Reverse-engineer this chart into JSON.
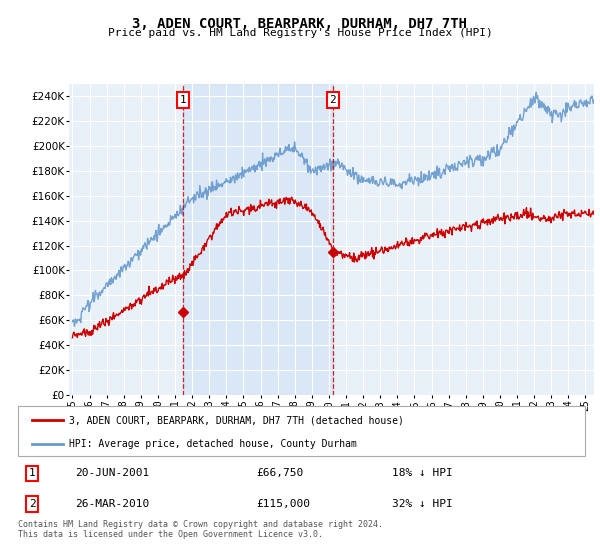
{
  "title": "3, ADEN COURT, BEARPARK, DURHAM, DH7 7TH",
  "subtitle": "Price paid vs. HM Land Registry's House Price Index (HPI)",
  "legend_line1": "3, ADEN COURT, BEARPARK, DURHAM, DH7 7TH (detached house)",
  "legend_line2": "HPI: Average price, detached house, County Durham",
  "footnote": "Contains HM Land Registry data © Crown copyright and database right 2024.\nThis data is licensed under the Open Government Licence v3.0.",
  "transaction1_date": "20-JUN-2001",
  "transaction1_price": "£66,750",
  "transaction1_hpi": "18% ↓ HPI",
  "transaction2_date": "26-MAR-2010",
  "transaction2_price": "£115,000",
  "transaction2_hpi": "32% ↓ HPI",
  "vline1_x": 2001.47,
  "vline2_x": 2010.23,
  "marker1_x": 2001.47,
  "marker1_y": 66750,
  "marker2_x": 2010.23,
  "marker2_y": 115000,
  "hpi_color": "#6699cc",
  "price_color": "#cc0000",
  "vline_color": "#cc0000",
  "shade_color": "#cce0f5",
  "background_color": "#e8f0f8",
  "ylim": [
    0,
    250000
  ],
  "xlim": [
    1994.8,
    2025.5
  ],
  "yticks": [
    0,
    20000,
    40000,
    60000,
    80000,
    100000,
    120000,
    140000,
    160000,
    180000,
    200000,
    220000,
    240000
  ],
  "xticks": [
    1995,
    1996,
    1997,
    1998,
    1999,
    2000,
    2001,
    2002,
    2003,
    2004,
    2005,
    2006,
    2007,
    2008,
    2009,
    2010,
    2011,
    2012,
    2013,
    2014,
    2015,
    2016,
    2017,
    2018,
    2019,
    2020,
    2021,
    2022,
    2023,
    2024,
    2025
  ]
}
